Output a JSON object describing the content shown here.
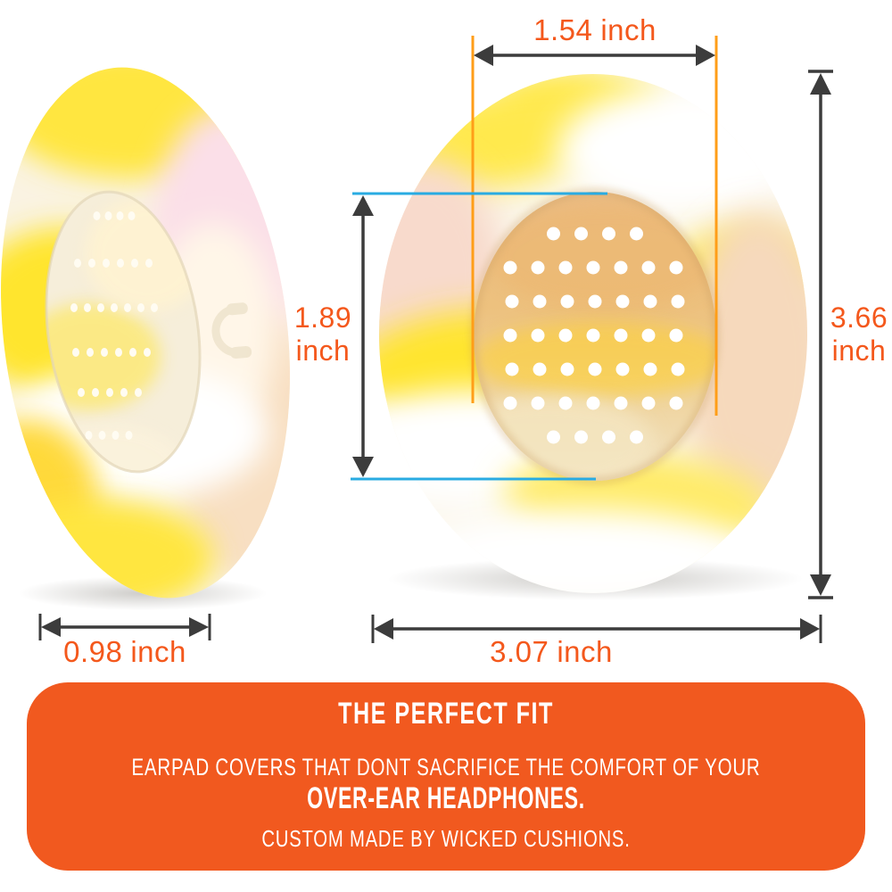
{
  "measurements": {
    "inner_width": {
      "value": "1.54",
      "unit": "inch"
    },
    "inner_height": {
      "value": "1.89",
      "unit": "inch"
    },
    "outer_height": {
      "value": "3.66",
      "unit": "inch"
    },
    "outer_width": {
      "value": "3.07",
      "unit": "inch"
    },
    "pad_thickness": {
      "value": "0.98",
      "unit": "inch"
    }
  },
  "banner": {
    "title": "THE PERFECT FIT",
    "line1": "EARPAD COVERS THAT DONT SACRIFICE THE COMFORT OF YOUR",
    "line2": "OVER-EAR HEADPHONES.",
    "line3": "CUSTOM MADE BY WICKED CUSHIONS."
  },
  "colors": {
    "accent_text_orange": "#F4581C",
    "banner_orange": "#F1591F",
    "extension_line_orange": "#FF9E18",
    "guide_line_cyan": "#29ABE2",
    "arrow_dark": "#3C3C3C",
    "pad_yellow": "#FFE640",
    "pad_cream": "#FAF3E2",
    "inner_pad_tan": "#EDC17E"
  },
  "icons": {
    "emboss_logo": "wicked-cushions-headphones-emboss"
  }
}
